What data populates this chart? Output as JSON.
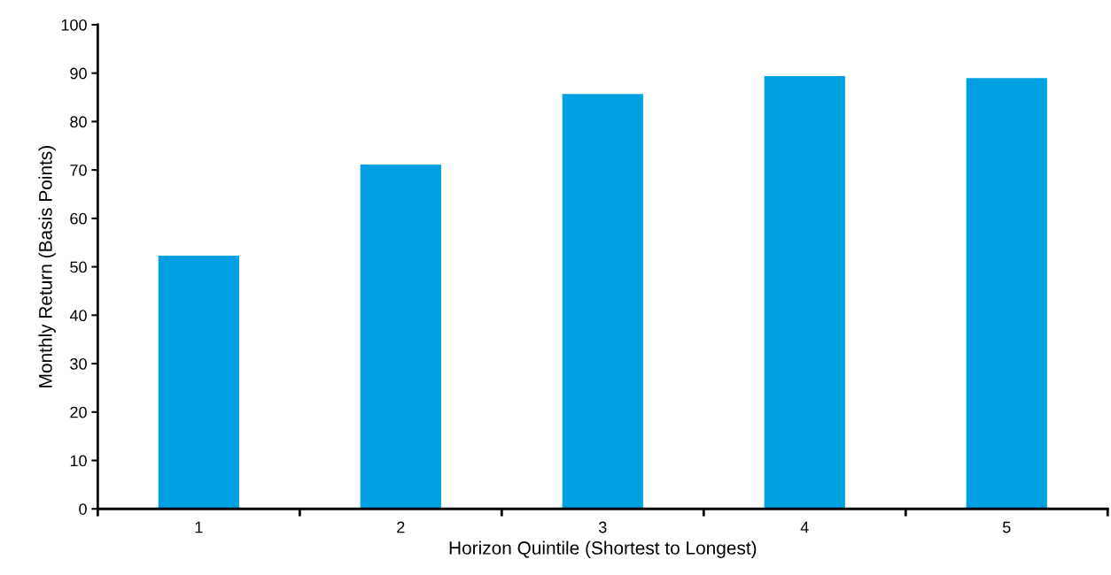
{
  "chart_data": {
    "type": "bar",
    "xlabel": "Horizon Quintile (Shortest to Longest)",
    "ylabel": "Monthly Return (Basis Points)",
    "categories": [
      "1",
      "2",
      "3",
      "4",
      "5"
    ],
    "values": [
      52.3,
      71.1,
      85.7,
      89.4,
      89.0
    ],
    "color": "#00a0e3",
    "ylim": [
      0,
      100
    ],
    "yticks": [
      0,
      10,
      20,
      30,
      40,
      50,
      60,
      70,
      80,
      90,
      100
    ],
    "grid": false,
    "legend": false
  }
}
